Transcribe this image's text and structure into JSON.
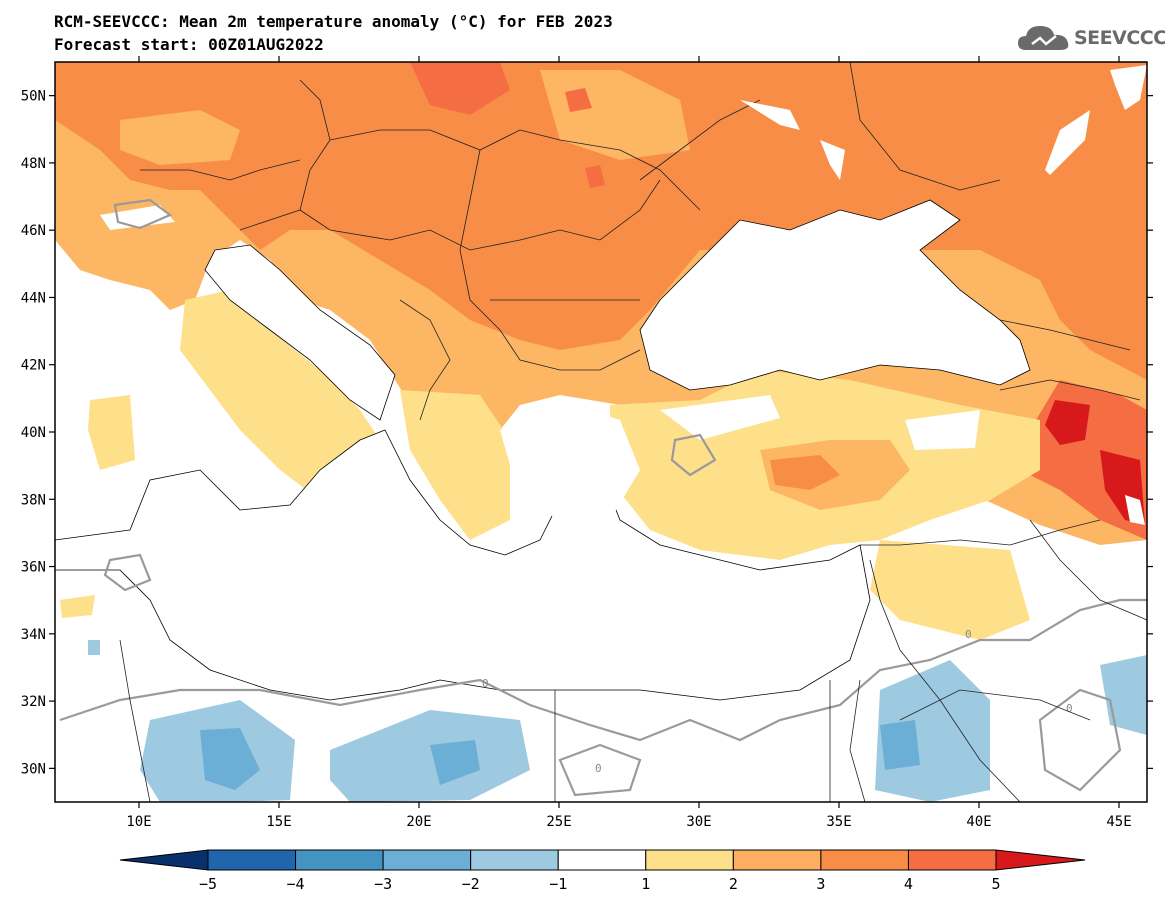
{
  "header": {
    "title": "RCM-SEEVCCC: Mean 2m temperature anomaly (°C) for FEB 2023",
    "subtitle": "Forecast start: 00Z01AUG2022"
  },
  "logo": {
    "text": "SEEVCCC",
    "icon": "cloud-icon"
  },
  "map": {
    "lon_range": [
      7,
      46
    ],
    "lat_range": [
      29,
      51
    ],
    "lat_ticks": [
      {
        "value": 30,
        "label": "30N"
      },
      {
        "value": 32,
        "label": "32N"
      },
      {
        "value": 34,
        "label": "34N"
      },
      {
        "value": 36,
        "label": "36N"
      },
      {
        "value": 38,
        "label": "38N"
      },
      {
        "value": 40,
        "label": "40N"
      },
      {
        "value": 42,
        "label": "42N"
      },
      {
        "value": 44,
        "label": "44N"
      },
      {
        "value": 46,
        "label": "46N"
      },
      {
        "value": 48,
        "label": "48N"
      },
      {
        "value": 50,
        "label": "50N"
      }
    ],
    "lon_ticks": [
      {
        "value": 10,
        "label": "10E"
      },
      {
        "value": 15,
        "label": "15E"
      },
      {
        "value": 20,
        "label": "20E"
      },
      {
        "value": 25,
        "label": "25E"
      },
      {
        "value": 30,
        "label": "30E"
      },
      {
        "value": 35,
        "label": "35E"
      },
      {
        "value": 40,
        "label": "40E"
      },
      {
        "value": 45,
        "label": "45E"
      }
    ],
    "contour_label": "0"
  },
  "colorbar": {
    "levels": [
      "−5",
      "−4",
      "−3",
      "−2",
      "−1",
      "1",
      "2",
      "3",
      "4",
      "5"
    ],
    "colors": [
      "#08306b",
      "#2166ac",
      "#4393c3",
      "#6baed6",
      "#9ecae1",
      "#ffffff",
      "#fee08b",
      "#fdae61",
      "#f88d47",
      "#f46d43",
      "#d7191c"
    ]
  }
}
